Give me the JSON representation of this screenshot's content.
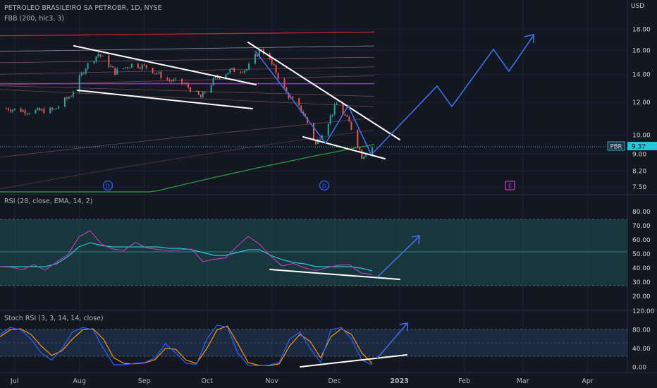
{
  "header": {
    "symbol_line": "PETROLEO BRASILEIRO SA PETROBR, 1D, NYSE",
    "indicator_line": "FBB (200, hlc3, 3)"
  },
  "currency": "USD",
  "price_axis": {
    "ticks": [
      "18.00",
      "16.00",
      "14.00",
      "12.00",
      "10.00",
      "9.00",
      "8.20",
      "7.50"
    ],
    "last_label": "PBR",
    "last_value": "9.37"
  },
  "rsi_panel": {
    "title": "RSI (28, close, EMA, 14, 2)",
    "ticks": [
      "80.00",
      "70.00",
      "60.00",
      "50.00",
      "40.00",
      "30.00",
      "20.00"
    ]
  },
  "stoch_panel": {
    "title": "Stoch RSI (3, 3, 14, 14, close)",
    "ticks": [
      "120.00",
      "80.00",
      "40.00",
      "0.00"
    ]
  },
  "x_axis": {
    "labels": [
      "Jul",
      "Aug",
      "Sep",
      "Oct",
      "Nov",
      "Dec",
      "2023",
      "Feb",
      "Mar",
      "Apr"
    ]
  },
  "event_markers": [
    "D",
    "D",
    "E"
  ],
  "colors": {
    "background": "#131722",
    "up_candle": "#26a69a",
    "down_candle": "#ef5350",
    "rsi_line": "#c040c0",
    "rsi_ma": "#29c6d0",
    "stoch_k": "#2962ff",
    "stoch_d": "#ff9800",
    "projection": "#3f6fe8",
    "fib_top": "#c62828",
    "fib_mid": "#b72fc4",
    "fib_bottom": "#2e9e3a",
    "last_price": "#26c6da"
  },
  "chart_data": [
    {
      "type": "candlestick",
      "title": "PETROLEO BRASILEIRO SA PETROBR, 1D, NYSE",
      "x_range": [
        "2022-06-24",
        "2023-04-20"
      ],
      "ylim": [
        7.3,
        20.5
      ],
      "y_scale": "log",
      "last_price": 9.37,
      "close_path": [
        {
          "date": "2022-06-27",
          "close": 11.6
        },
        {
          "date": "2022-07-08",
          "close": 11.4
        },
        {
          "date": "2022-07-20",
          "close": 11.5
        },
        {
          "date": "2022-07-28",
          "close": 12.5
        },
        {
          "date": "2022-08-04",
          "close": 14.6
        },
        {
          "date": "2022-08-10",
          "close": 15.7
        },
        {
          "date": "2022-08-18",
          "close": 14.2
        },
        {
          "date": "2022-08-26",
          "close": 14.8
        },
        {
          "date": "2022-09-02",
          "close": 14.6
        },
        {
          "date": "2022-09-12",
          "close": 13.6
        },
        {
          "date": "2022-09-20",
          "close": 13.3
        },
        {
          "date": "2022-09-28",
          "close": 12.3
        },
        {
          "date": "2022-10-05",
          "close": 13.7
        },
        {
          "date": "2022-10-12",
          "close": 14.3
        },
        {
          "date": "2022-10-20",
          "close": 14.4
        },
        {
          "date": "2022-10-27",
          "close": 16.2
        },
        {
          "date": "2022-11-02",
          "close": 14.5
        },
        {
          "date": "2022-11-08",
          "close": 12.6
        },
        {
          "date": "2022-11-16",
          "close": 11.3
        },
        {
          "date": "2022-11-22",
          "close": 9.5
        },
        {
          "date": "2022-11-28",
          "close": 10.8
        },
        {
          "date": "2022-12-02",
          "close": 11.9
        },
        {
          "date": "2022-12-08",
          "close": 10.7
        },
        {
          "date": "2022-12-14",
          "close": 8.9
        },
        {
          "date": "2022-12-19",
          "close": 9.37
        }
      ],
      "fibonacci_bands": {
        "top": 17.7,
        "middle": 13.3,
        "bottom": 9.5
      },
      "projection": [
        {
          "date": "2022-12-19",
          "price": 9.37
        },
        {
          "date": "2023-01-12",
          "price": 13.3
        },
        {
          "date": "2023-01-24",
          "price": 11.8
        },
        {
          "date": "2023-02-16",
          "price": 16.2
        },
        {
          "date": "2023-02-28",
          "price": 14.3
        },
        {
          "date": "2023-03-16",
          "price": 17.8
        }
      ]
    },
    {
      "type": "line",
      "title": "RSI (28, close, EMA, 14, 2)",
      "ylim": [
        16,
        86
      ],
      "band": [
        30,
        70
      ],
      "midline": 50,
      "series": [
        {
          "values": [
            41,
            40,
            40,
            41,
            40,
            43,
            50,
            62,
            66,
            58,
            52,
            54,
            57,
            55,
            53,
            52,
            54,
            52,
            46,
            45,
            48,
            55,
            62,
            58,
            47,
            43,
            42,
            41,
            38,
            40,
            43,
            41,
            38,
            34
          ]
        },
        {
          "values": [
            41,
            41,
            41,
            41,
            41,
            43,
            48,
            55,
            58,
            56,
            55,
            55,
            55,
            55,
            55,
            54,
            54,
            53,
            51,
            49,
            49,
            51,
            53,
            53,
            49,
            46,
            44,
            43,
            41,
            41,
            41,
            41,
            40,
            38
          ]
        }
      ]
    },
    {
      "type": "line",
      "title": "Stoch RSI (3, 3, 14, 14, close)",
      "ylim": [
        -10,
        120
      ],
      "band": [
        20,
        80
      ],
      "midline": 50,
      "series": [
        {
          "values": [
            70,
            85,
            80,
            60,
            30,
            15,
            40,
            75,
            85,
            80,
            40,
            5,
            5,
            8,
            10,
            20,
            50,
            30,
            8,
            6,
            60,
            90,
            85,
            30,
            4,
            3,
            4,
            10,
            60,
            75,
            40,
            10,
            80,
            85,
            60,
            15,
            5
          ]
        },
        {
          "values": [
            65,
            80,
            82,
            70,
            45,
            25,
            35,
            60,
            80,
            82,
            60,
            20,
            8,
            7,
            9,
            16,
            40,
            38,
            15,
            8,
            40,
            80,
            88,
            50,
            10,
            4,
            3,
            7,
            45,
            70,
            55,
            20,
            65,
            82,
            70,
            30,
            8
          ]
        }
      ]
    }
  ]
}
